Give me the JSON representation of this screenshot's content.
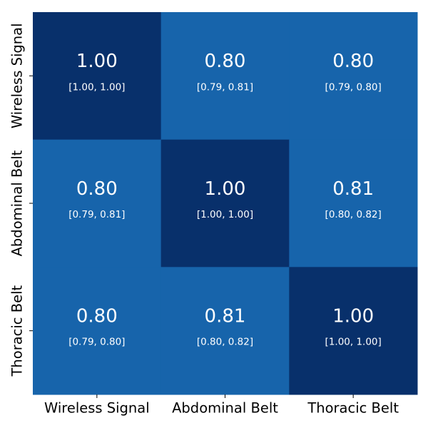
{
  "chart_data": {
    "type": "heatmap",
    "title": "",
    "xlabel": "",
    "ylabel": "",
    "x_categories": [
      "Wireless Signal",
      "Abdominal Belt",
      "Thoracic Belt"
    ],
    "y_categories": [
      "Wireless Signal",
      "Abdominal Belt",
      "Thoracic Belt"
    ],
    "values": [
      [
        1.0,
        0.8,
        0.8
      ],
      [
        0.8,
        1.0,
        0.81
      ],
      [
        0.8,
        0.81,
        1.0
      ]
    ],
    "value_labels": [
      [
        "1.00",
        "0.80",
        "0.80"
      ],
      [
        "0.80",
        "1.00",
        "0.81"
      ],
      [
        "0.80",
        "0.81",
        "1.00"
      ]
    ],
    "ci_labels": [
      [
        "[1.00, 1.00]",
        "[0.79, 0.81]",
        "[0.79, 0.80]"
      ],
      [
        "[0.79, 0.81]",
        "[1.00, 1.00]",
        "[0.80, 0.82]"
      ],
      [
        "[0.79, 0.80]",
        "[0.80, 0.82]",
        "[1.00, 1.00]"
      ]
    ],
    "colors": {
      "high": "#08306b",
      "mid": "#1764ab",
      "text": "#ffffff"
    },
    "colorbar": false,
    "grid": false
  }
}
